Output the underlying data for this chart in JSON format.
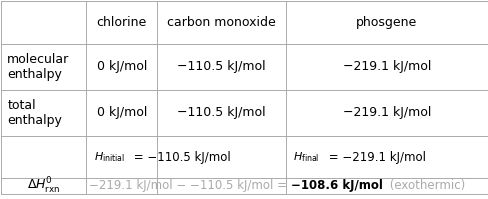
{
  "col_headers": [
    "",
    "chlorine",
    "carbon monoxide",
    "phosgene"
  ],
  "row1_label": "molecular\nenthalpy",
  "row2_label": "total\nenthalpy",
  "chlorine_val": "0 kJ/mol",
  "co_val": "−110.5 kJ/mol",
  "phosgene_val": "−219.1 kJ/mol",
  "hinit_tex": "$H_{\\mathrm{initial}}$",
  "hinit_val": " = −110.5 kJ/mol",
  "hfinal_tex": "$H_{\\mathrm{final}}$",
  "hfinal_val": " = −219.1 kJ/mol",
  "drxn_tex": "$\\Delta H^{0}_{\\mathrm{rxn}}$",
  "drxn_gray": "−219.1 kJ/mol − −110.5 kJ/mol = ",
  "drxn_bold": "−108.6 kJ/mol",
  "drxn_suffix": " (exothermic)",
  "bg_color": "#ffffff",
  "text_color": "#000000",
  "gray_color": "#aaaaaa",
  "line_color": "#aaaaaa",
  "fs": 9.0
}
